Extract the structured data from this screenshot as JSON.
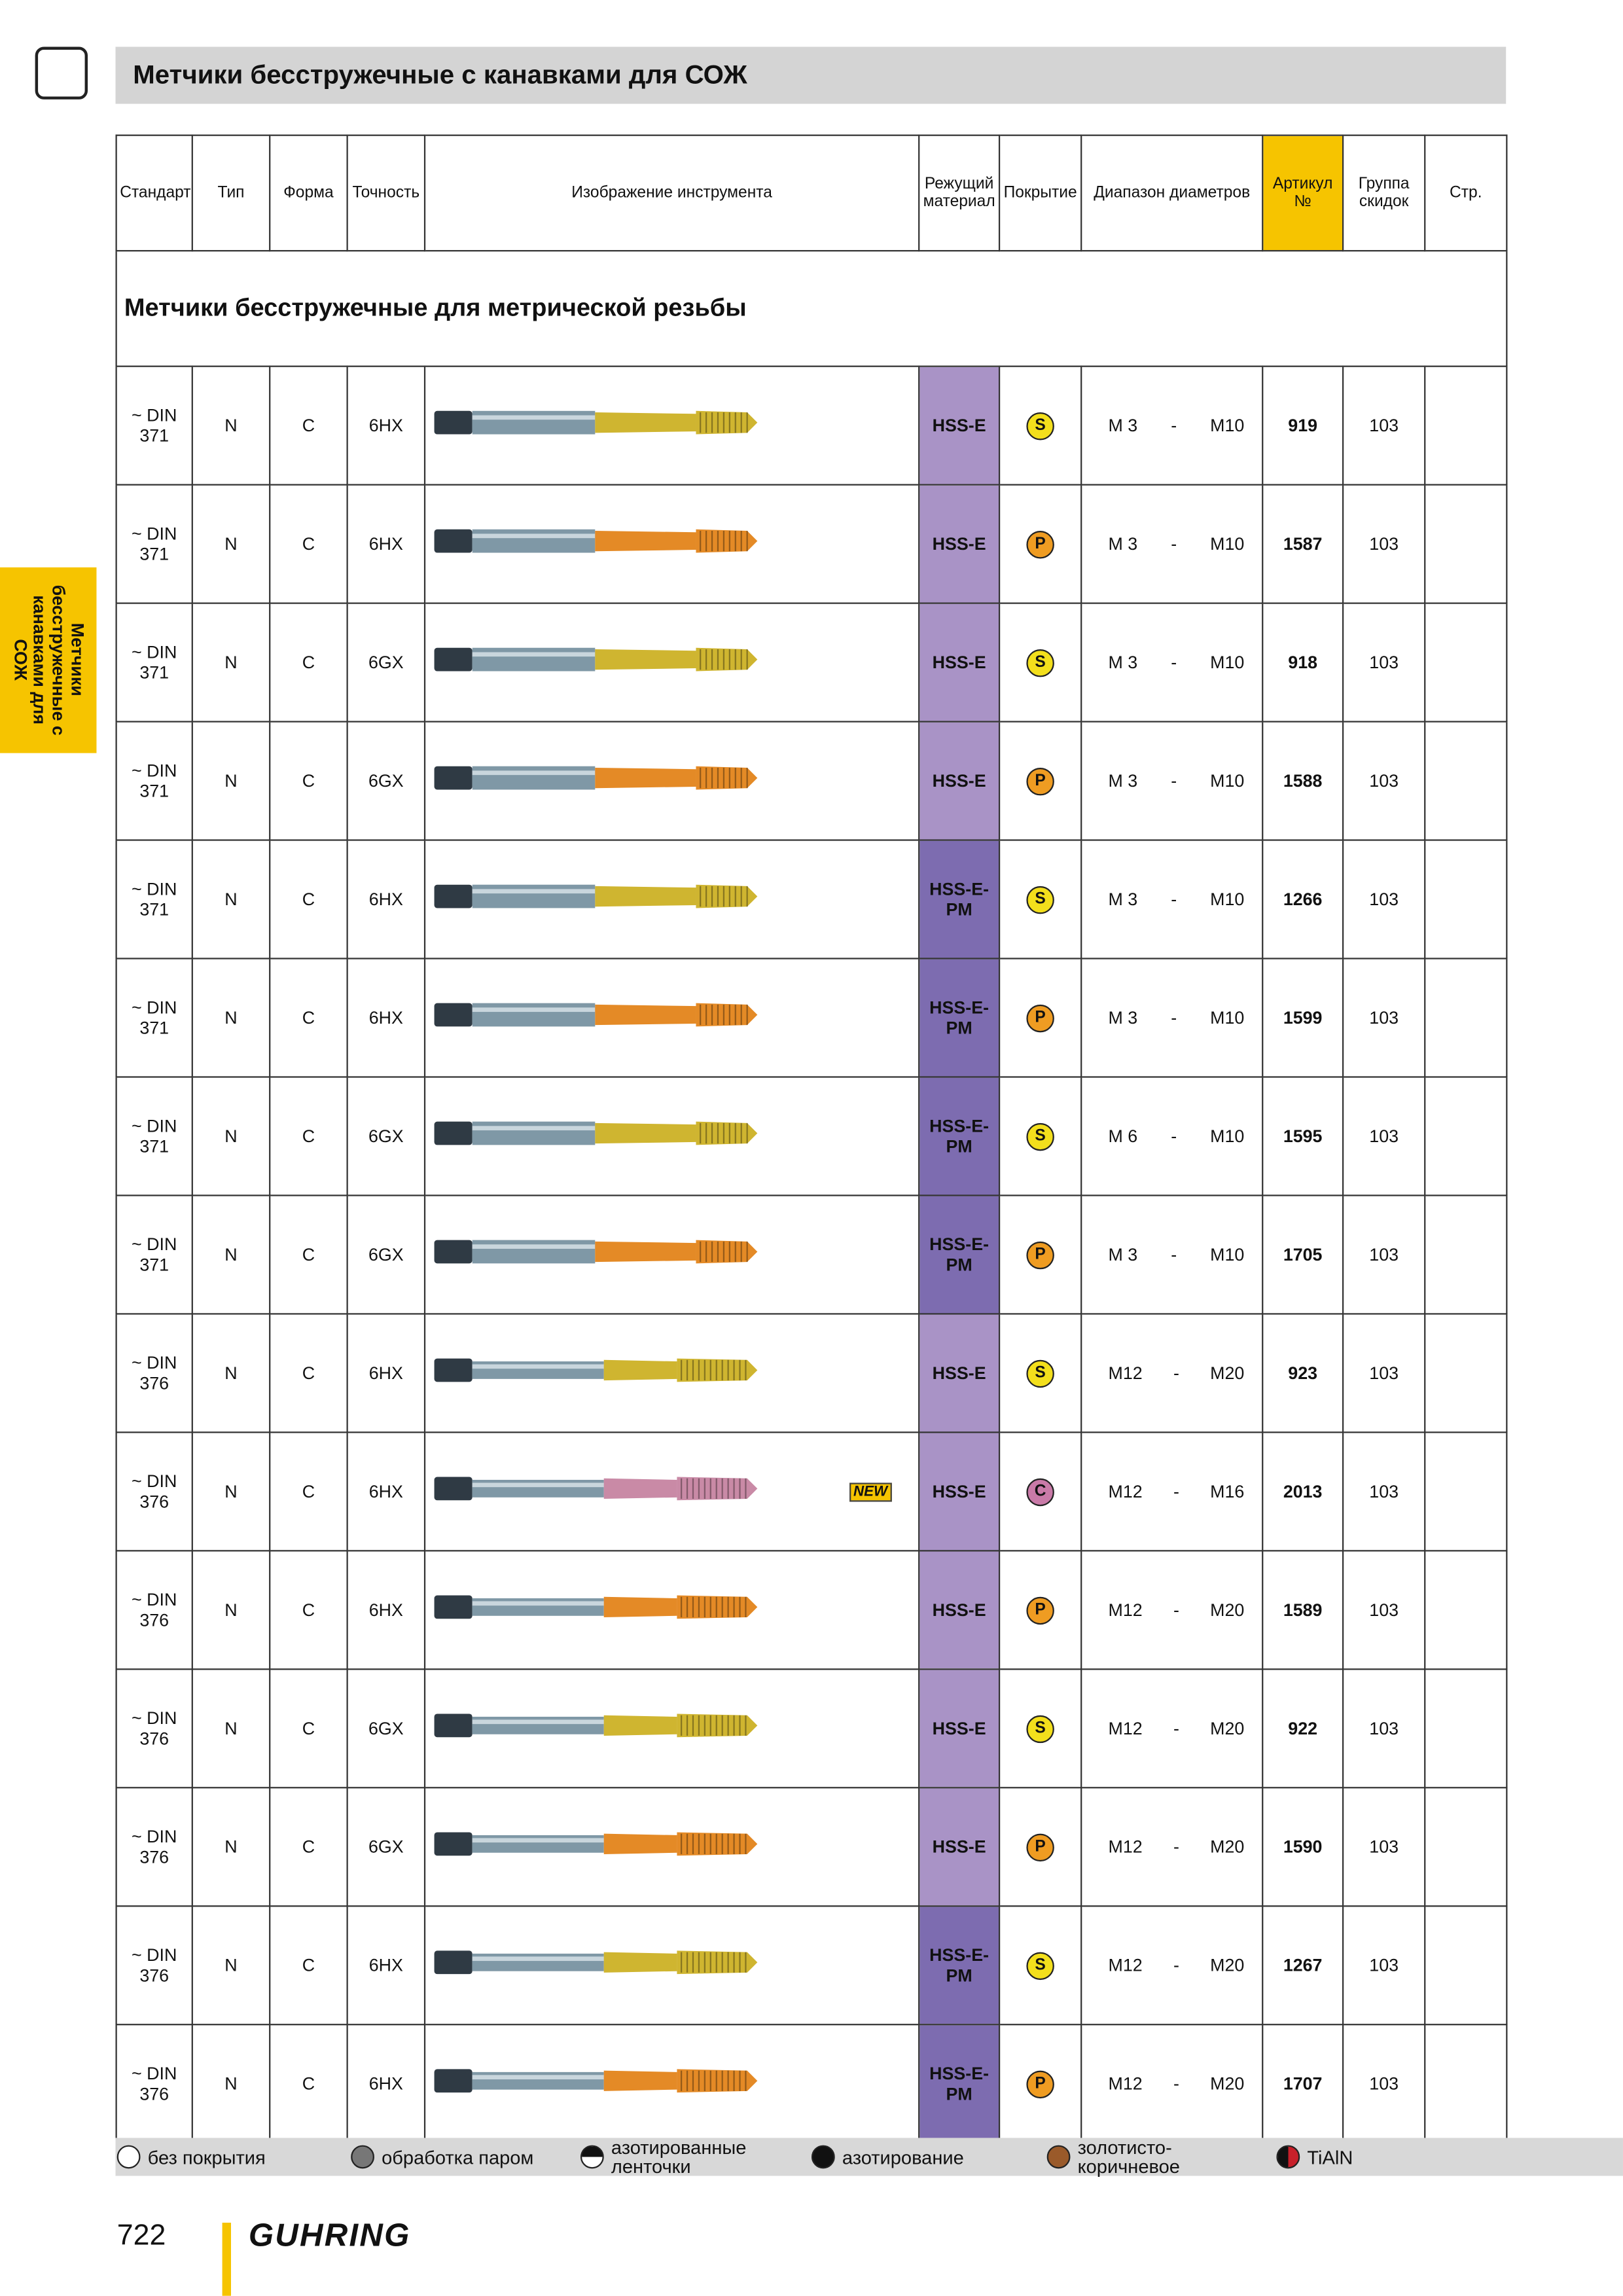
{
  "header": {
    "title": "Метчики бесстружечные с канавками для СОЖ"
  },
  "side_tab": "Метчики бесстружечные с канавками для СОЖ",
  "table": {
    "columns": [
      "Стандарт",
      "Тип",
      "Форма",
      "Точность",
      "Изображение инструмента",
      "Режущий материал",
      "Покрытие",
      "Диапазон диаметров",
      "Артикул №",
      "Группа скидок",
      "Стр."
    ],
    "section": "Метчики бесстружечные для метрической резьбы",
    "rows": [
      {
        "standard": "~ DIN 371",
        "type": "N",
        "form": "C",
        "tolerance": "6HX",
        "material": "HSS-E",
        "coating": "S",
        "range": [
          "M 3",
          "-",
          "M10"
        ],
        "article": "919",
        "group": "103"
      },
      {
        "standard": "~ DIN 371",
        "type": "N",
        "form": "C",
        "tolerance": "6HX",
        "material": "HSS-E",
        "coating": "P",
        "range": [
          "M 3",
          "-",
          "M10"
        ],
        "article": "1587",
        "group": "103"
      },
      {
        "standard": "~ DIN 371",
        "type": "N",
        "form": "C",
        "tolerance": "6GX",
        "material": "HSS-E",
        "coating": "S",
        "range": [
          "M 3",
          "-",
          "M10"
        ],
        "article": "918",
        "group": "103"
      },
      {
        "standard": "~ DIN 371",
        "type": "N",
        "form": "C",
        "tolerance": "6GX",
        "material": "HSS-E",
        "coating": "P",
        "range": [
          "M 3",
          "-",
          "M10"
        ],
        "article": "1588",
        "group": "103"
      },
      {
        "standard": "~ DIN 371",
        "type": "N",
        "form": "C",
        "tolerance": "6HX",
        "material": "HSS-E-PM",
        "coating": "S",
        "range": [
          "M 3",
          "-",
          "M10"
        ],
        "article": "1266",
        "group": "103"
      },
      {
        "standard": "~ DIN 371",
        "type": "N",
        "form": "C",
        "tolerance": "6HX",
        "material": "HSS-E-PM",
        "coating": "P",
        "range": [
          "M 3",
          "-",
          "M10"
        ],
        "article": "1599",
        "group": "103"
      },
      {
        "standard": "~ DIN 371",
        "type": "N",
        "form": "C",
        "tolerance": "6GX",
        "material": "HSS-E-PM",
        "coating": "S",
        "range": [
          "M 6",
          "-",
          "M10"
        ],
        "article": "1595",
        "group": "103"
      },
      {
        "standard": "~ DIN 371",
        "type": "N",
        "form": "C",
        "tolerance": "6GX",
        "material": "HSS-E-PM",
        "coating": "P",
        "range": [
          "M 3",
          "-",
          "M10"
        ],
        "article": "1705",
        "group": "103"
      },
      {
        "standard": "~ DIN 376",
        "type": "N",
        "form": "C",
        "tolerance": "6HX",
        "material": "HSS-E",
        "coating": "S",
        "range": [
          "M12",
          "-",
          "M20"
        ],
        "article": "923",
        "group": "103"
      },
      {
        "standard": "~ DIN 376",
        "type": "N",
        "form": "C",
        "tolerance": "6HX",
        "material": "HSS-E",
        "coating": "C",
        "range": [
          "M12",
          "-",
          "M16"
        ],
        "article": "2013",
        "group": "103",
        "badge": "NEW"
      },
      {
        "standard": "~ DIN 376",
        "type": "N",
        "form": "C",
        "tolerance": "6HX",
        "material": "HSS-E",
        "coating": "P",
        "range": [
          "M12",
          "-",
          "M20"
        ],
        "article": "1589",
        "group": "103"
      },
      {
        "standard": "~ DIN 376",
        "type": "N",
        "form": "C",
        "tolerance": "6GX",
        "material": "HSS-E",
        "coating": "S",
        "range": [
          "M12",
          "-",
          "M20"
        ],
        "article": "922",
        "group": "103"
      },
      {
        "standard": "~ DIN 376",
        "type": "N",
        "form": "C",
        "tolerance": "6GX",
        "material": "HSS-E",
        "coating": "P",
        "range": [
          "M12",
          "-",
          "M20"
        ],
        "article": "1590",
        "group": "103"
      },
      {
        "standard": "~ DIN 376",
        "type": "N",
        "form": "C",
        "tolerance": "6HX",
        "material": "HSS-E-PM",
        "coating": "S",
        "range": [
          "M12",
          "-",
          "M20"
        ],
        "article": "1267",
        "group": "103"
      },
      {
        "standard": "~ DIN 376",
        "type": "N",
        "form": "C",
        "tolerance": "6HX",
        "material": "HSS-E-PM",
        "coating": "P",
        "range": [
          "M12",
          "-",
          "M20"
        ],
        "article": "1707",
        "group": "103"
      }
    ]
  },
  "legend": [
    "без покрытия",
    "обработка паром",
    "азотированные ленточки",
    "азотирование",
    "золотисто-коричневое",
    "TiAlN"
  ],
  "footer": {
    "page": "722",
    "brand": "GUHRING"
  }
}
